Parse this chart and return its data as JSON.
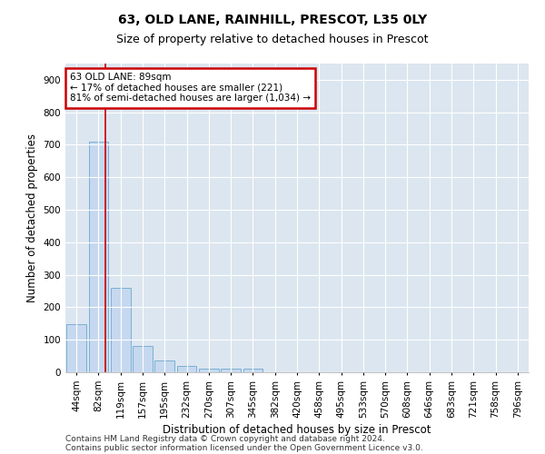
{
  "title1": "63, OLD LANE, RAINHILL, PRESCOT, L35 0LY",
  "title2": "Size of property relative to detached houses in Prescot",
  "xlabel": "Distribution of detached houses by size in Prescot",
  "ylabel": "Number of detached properties",
  "bar_labels": [
    "44sqm",
    "82sqm",
    "119sqm",
    "157sqm",
    "195sqm",
    "232sqm",
    "270sqm",
    "307sqm",
    "345sqm",
    "382sqm",
    "420sqm",
    "458sqm",
    "495sqm",
    "533sqm",
    "570sqm",
    "608sqm",
    "646sqm",
    "683sqm",
    "721sqm",
    "758sqm",
    "796sqm"
  ],
  "bar_values": [
    148,
    710,
    260,
    82,
    36,
    20,
    12,
    12,
    12,
    0,
    0,
    0,
    0,
    0,
    0,
    0,
    0,
    0,
    0,
    0,
    0
  ],
  "bar_color": "#c5d8ef",
  "bar_edge_color": "#7aafd4",
  "property_line_x": 1.3,
  "annotation_text": "63 OLD LANE: 89sqm\n← 17% of detached houses are smaller (221)\n81% of semi-detached houses are larger (1,034) →",
  "annotation_box_color": "#ffffff",
  "annotation_box_edge_color": "#cc0000",
  "ylim": [
    0,
    950
  ],
  "yticks": [
    0,
    100,
    200,
    300,
    400,
    500,
    600,
    700,
    800,
    900
  ],
  "bg_color": "#dce6f0",
  "footer1": "Contains HM Land Registry data © Crown copyright and database right 2024.",
  "footer2": "Contains public sector information licensed under the Open Government Licence v3.0.",
  "title1_fontsize": 10,
  "title2_fontsize": 9,
  "xlabel_fontsize": 8.5,
  "ylabel_fontsize": 8.5,
  "tick_fontsize": 7.5,
  "footer_fontsize": 6.5
}
